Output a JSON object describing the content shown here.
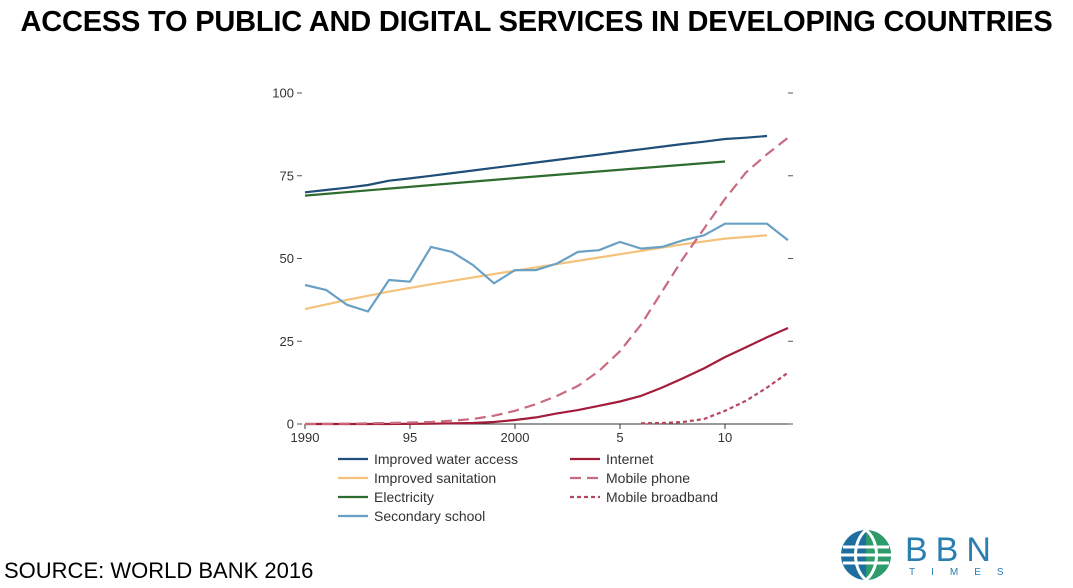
{
  "title": "ACCESS TO PUBLIC AND DIGITAL SERVICES IN DEVELOPING COUNTRIES",
  "source": "SOURCE: WORLD BANK 2016",
  "logo": {
    "word": "BBN",
    "sub": "TIMES"
  },
  "chart_data": {
    "type": "line",
    "title": "",
    "xlabel": "",
    "ylabel": "",
    "xlim": [
      1990,
      2013
    ],
    "ylim": [
      0,
      100
    ],
    "grid": false,
    "legend_position": "bottom",
    "x_ticks": [
      {
        "value": 1990,
        "label": "1990"
      },
      {
        "value": 1995,
        "label": "95"
      },
      {
        "value": 2000,
        "label": "2000"
      },
      {
        "value": 2005,
        "label": "5"
      },
      {
        "value": 2010,
        "label": "10"
      }
    ],
    "y_ticks": [
      {
        "value": 0,
        "label": "0"
      },
      {
        "value": 25,
        "label": "25"
      },
      {
        "value": 50,
        "label": "50"
      },
      {
        "value": 75,
        "label": "75"
      },
      {
        "value": 100,
        "label": "100"
      }
    ],
    "series": [
      {
        "name": "Improved water access",
        "color": "#1f4e79",
        "dash": "solid",
        "points": [
          [
            1990,
            70
          ],
          [
            1991,
            70.7
          ],
          [
            1992,
            71.4
          ],
          [
            1993,
            72.2
          ],
          [
            1994,
            73.5
          ],
          [
            1995,
            74.2
          ],
          [
            1996,
            75
          ],
          [
            1997,
            75.8
          ],
          [
            1998,
            76.6
          ],
          [
            1999,
            77.4
          ],
          [
            2000,
            78.2
          ],
          [
            2001,
            79
          ],
          [
            2002,
            79.8
          ],
          [
            2003,
            80.6
          ],
          [
            2004,
            81.4
          ],
          [
            2005,
            82.2
          ],
          [
            2006,
            83
          ],
          [
            2007,
            83.8
          ],
          [
            2008,
            84.6
          ],
          [
            2009,
            85.3
          ],
          [
            2010,
            86.1
          ],
          [
            2011,
            86.5
          ],
          [
            2012,
            87
          ]
        ]
      },
      {
        "name": "Improved sanitation",
        "color": "#f5c27a",
        "dash": "solid",
        "points": [
          [
            1990,
            34.7
          ],
          [
            1992,
            37.5
          ],
          [
            1994,
            40
          ],
          [
            1996,
            42.2
          ],
          [
            1998,
            44.3
          ],
          [
            2000,
            46.3
          ],
          [
            2002,
            48.3
          ],
          [
            2004,
            50.3
          ],
          [
            2006,
            52.3
          ],
          [
            2008,
            54.3
          ],
          [
            2010,
            56
          ],
          [
            2012,
            57
          ]
        ]
      },
      {
        "name": "Electricity",
        "color": "#2e6b2e",
        "dash": "solid",
        "points": [
          [
            1990,
            69
          ],
          [
            2000,
            74.3
          ],
          [
            2010,
            79.3
          ]
        ]
      },
      {
        "name": "Secondary school",
        "color": "#6aa0c4",
        "dash": "solid",
        "points": [
          [
            1990,
            42
          ],
          [
            1991,
            40.5
          ],
          [
            1992,
            36
          ],
          [
            1993,
            34
          ],
          [
            1994,
            43.5
          ],
          [
            1995,
            43
          ],
          [
            1996,
            53.5
          ],
          [
            1997,
            52
          ],
          [
            1998,
            48
          ],
          [
            1999,
            42.5
          ],
          [
            2000,
            46.5
          ],
          [
            2001,
            46.5
          ],
          [
            2002,
            48.5
          ],
          [
            2003,
            52
          ],
          [
            2004,
            52.5
          ],
          [
            2005,
            55
          ],
          [
            2006,
            53
          ],
          [
            2007,
            53.5
          ],
          [
            2008,
            55.5
          ],
          [
            2009,
            57
          ],
          [
            2010,
            60.5
          ],
          [
            2011,
            60.5
          ],
          [
            2012,
            60.5
          ],
          [
            2013,
            55.5
          ]
        ]
      },
      {
        "name": "Internet",
        "color": "#a31d3a",
        "dash": "solid",
        "points": [
          [
            1990,
            0
          ],
          [
            1992,
            0
          ],
          [
            1994,
            0
          ],
          [
            1996,
            0.1
          ],
          [
            1998,
            0.3
          ],
          [
            1999,
            0.6
          ],
          [
            2000,
            1.2
          ],
          [
            2001,
            2
          ],
          [
            2002,
            3.2
          ],
          [
            2003,
            4.2
          ],
          [
            2004,
            5.5
          ],
          [
            2005,
            6.8
          ],
          [
            2006,
            8.5
          ],
          [
            2007,
            11
          ],
          [
            2008,
            13.8
          ],
          [
            2009,
            16.8
          ],
          [
            2010,
            20.2
          ],
          [
            2011,
            23.2
          ],
          [
            2012,
            26.2
          ],
          [
            2013,
            29
          ]
        ]
      },
      {
        "name": "Mobile phone",
        "color": "#c96a7e",
        "dash": "dashed",
        "points": [
          [
            1990,
            0
          ],
          [
            1992,
            0.1
          ],
          [
            1994,
            0.3
          ],
          [
            1996,
            0.6
          ],
          [
            1997,
            1
          ],
          [
            1998,
            1.5
          ],
          [
            1999,
            2.5
          ],
          [
            2000,
            4
          ],
          [
            2001,
            6
          ],
          [
            2002,
            8.5
          ],
          [
            2003,
            11.5
          ],
          [
            2004,
            16
          ],
          [
            2005,
            22
          ],
          [
            2006,
            30
          ],
          [
            2007,
            40
          ],
          [
            2008,
            50
          ],
          [
            2009,
            59
          ],
          [
            2010,
            68
          ],
          [
            2011,
            76
          ],
          [
            2012,
            81.5
          ],
          [
            2013,
            86.5
          ]
        ]
      },
      {
        "name": "Mobile broadband",
        "color": "#b5475f",
        "dash": "dotted",
        "points": [
          [
            2006,
            0.2
          ],
          [
            2007,
            0.3
          ],
          [
            2008,
            0.6
          ],
          [
            2009,
            1.5
          ],
          [
            2010,
            4
          ],
          [
            2011,
            7
          ],
          [
            2012,
            11
          ],
          [
            2013,
            15.5
          ]
        ]
      }
    ]
  }
}
